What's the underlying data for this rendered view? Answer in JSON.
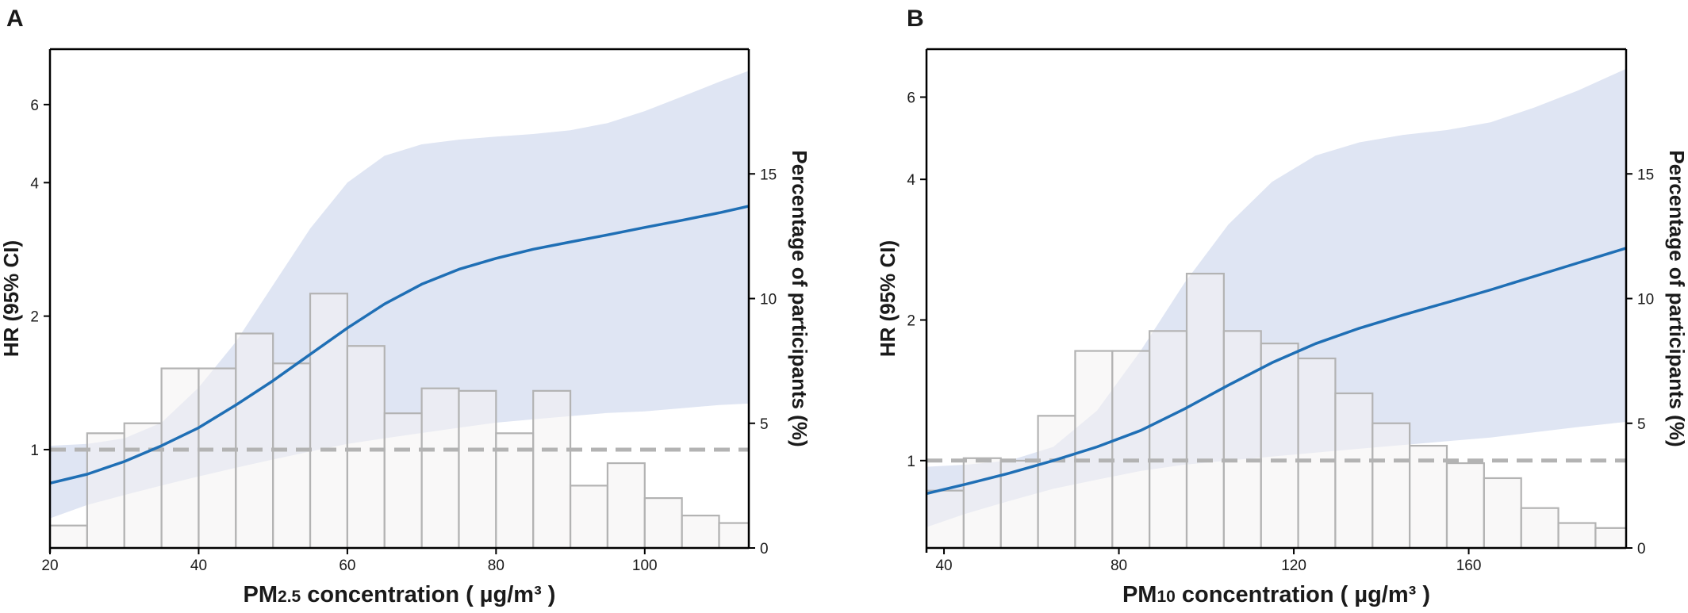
{
  "colors": {
    "line": "#1f6fb5",
    "ci_band": "#dfe5f3",
    "bar_fill": "#f4f2f2",
    "bar_stroke": "#b3b3b3",
    "ref_line": "#b3b3b3",
    "axis": "#000000"
  },
  "chart_data": [
    {
      "type": "line",
      "panel_label": "A",
      "ylabel": "HR (95% CI)",
      "y2label": "Percentage of participants (%)",
      "xlabel_main": "PM",
      "xlabel_sub": "2.5",
      "xlabel_rest": " concentration ( µg/m³ )",
      "xlim": [
        20,
        114
      ],
      "ylim_log": [
        0.6,
        8.0
      ],
      "y2lim": [
        0,
        20
      ],
      "x_ticks": [
        20,
        40,
        60,
        80,
        100
      ],
      "y_ticks": [
        1,
        2,
        4,
        6
      ],
      "y2_ticks": [
        0,
        5,
        10,
        15
      ],
      "reference_hr": 1,
      "histogram": {
        "bin_width": 5,
        "bins": [
          {
            "start": 20,
            "pct": 0.9
          },
          {
            "start": 25,
            "pct": 4.6
          },
          {
            "start": 30,
            "pct": 5.0
          },
          {
            "start": 35,
            "pct": 7.2
          },
          {
            "start": 40,
            "pct": 7.2
          },
          {
            "start": 45,
            "pct": 8.6
          },
          {
            "start": 50,
            "pct": 7.4
          },
          {
            "start": 55,
            "pct": 10.2
          },
          {
            "start": 60,
            "pct": 8.1
          },
          {
            "start": 65,
            "pct": 5.4
          },
          {
            "start": 70,
            "pct": 6.4
          },
          {
            "start": 75,
            "pct": 6.3
          },
          {
            "start": 80,
            "pct": 4.6
          },
          {
            "start": 85,
            "pct": 6.3
          },
          {
            "start": 90,
            "pct": 2.5
          },
          {
            "start": 95,
            "pct": 3.4
          },
          {
            "start": 100,
            "pct": 2.0
          },
          {
            "start": 105,
            "pct": 1.3
          },
          {
            "start": 110,
            "pct": 1.0
          }
        ]
      },
      "curve": {
        "x": [
          20,
          25,
          30,
          35,
          40,
          45,
          50,
          55,
          60,
          65,
          70,
          75,
          80,
          85,
          90,
          95,
          100,
          105,
          110,
          114
        ],
        "hr": [
          0.84,
          0.88,
          0.94,
          1.02,
          1.12,
          1.26,
          1.43,
          1.64,
          1.88,
          2.13,
          2.36,
          2.55,
          2.7,
          2.83,
          2.94,
          3.05,
          3.17,
          3.29,
          3.42,
          3.54
        ],
        "lower": [
          0.7,
          0.75,
          0.79,
          0.83,
          0.87,
          0.91,
          0.95,
          0.99,
          1.03,
          1.06,
          1.09,
          1.12,
          1.15,
          1.17,
          1.19,
          1.21,
          1.22,
          1.24,
          1.26,
          1.27
        ],
        "upper": [
          1.02,
          1.03,
          1.06,
          1.15,
          1.38,
          1.75,
          2.35,
          3.15,
          4.0,
          4.6,
          4.88,
          5.0,
          5.08,
          5.15,
          5.25,
          5.45,
          5.8,
          6.25,
          6.75,
          7.15
        ]
      }
    },
    {
      "type": "line",
      "panel_label": "B",
      "ylabel": "HR (95% CI)",
      "y2label": "Percentage of participants (%)",
      "xlabel_main": "PM",
      "xlabel_sub": "10",
      "xlabel_rest": " concentration ( µg/m³ )",
      "xlim": [
        36,
        196
      ],
      "ylim_log": [
        0.65,
        7.6
      ],
      "y2lim": [
        0,
        20
      ],
      "x_ticks": [
        40,
        80,
        120,
        160
      ],
      "y_ticks": [
        1,
        2,
        4,
        6
      ],
      "y2_ticks": [
        0,
        5,
        10,
        15
      ],
      "reference_hr": 1,
      "histogram": {
        "bin_width": 8.5,
        "bins": [
          {
            "start": 36,
            "pct": 2.3
          },
          {
            "start": 44.5,
            "pct": 3.6
          },
          {
            "start": 53,
            "pct": 3.5
          },
          {
            "start": 61.5,
            "pct": 5.3
          },
          {
            "start": 70,
            "pct": 7.9
          },
          {
            "start": 78.5,
            "pct": 7.9
          },
          {
            "start": 87,
            "pct": 8.7
          },
          {
            "start": 95.5,
            "pct": 11.0
          },
          {
            "start": 104,
            "pct": 8.7
          },
          {
            "start": 112.5,
            "pct": 8.2
          },
          {
            "start": 121,
            "pct": 7.6
          },
          {
            "start": 129.5,
            "pct": 6.2
          },
          {
            "start": 138,
            "pct": 5.0
          },
          {
            "start": 146.5,
            "pct": 4.1
          },
          {
            "start": 155,
            "pct": 3.4
          },
          {
            "start": 163.5,
            "pct": 2.8
          },
          {
            "start": 172,
            "pct": 1.6
          },
          {
            "start": 180.5,
            "pct": 1.0
          },
          {
            "start": 189,
            "pct": 0.8
          }
        ]
      },
      "curve": {
        "x": [
          36,
          45,
          55,
          65,
          75,
          85,
          95,
          105,
          115,
          125,
          135,
          145,
          155,
          165,
          175,
          185,
          196
        ],
        "hr": [
          0.85,
          0.89,
          0.94,
          1.0,
          1.07,
          1.16,
          1.29,
          1.45,
          1.62,
          1.78,
          1.92,
          2.05,
          2.18,
          2.32,
          2.48,
          2.65,
          2.85
        ],
        "lower": [
          0.72,
          0.77,
          0.82,
          0.87,
          0.91,
          0.95,
          0.98,
          1.0,
          1.02,
          1.04,
          1.06,
          1.08,
          1.1,
          1.12,
          1.15,
          1.18,
          1.21
        ],
        "upper": [
          0.97,
          0.98,
          1.0,
          1.07,
          1.28,
          1.72,
          2.4,
          3.2,
          3.95,
          4.5,
          4.8,
          4.98,
          5.1,
          5.3,
          5.7,
          6.2,
          6.9
        ]
      }
    }
  ]
}
